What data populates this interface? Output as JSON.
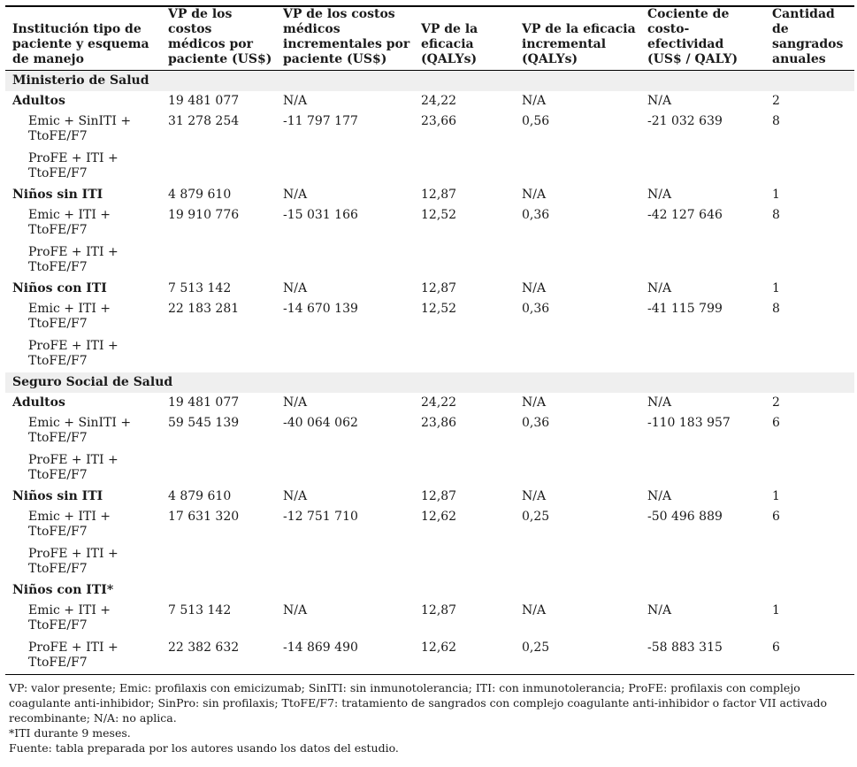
{
  "headers": [
    "Institución tipo de paciente y esquema de manejo",
    "VP de los costos médicos por paciente (US$)",
    "VP de los costos médicos incrementales por paciente (US$)",
    "VP de la eficacia (QALYs)",
    "VP de la eficacia incremental (QALYs)",
    "Cociente de costo- efectividad (US$ / QALY)",
    "Cantidad de sangrados anuales"
  ],
  "sections": [
    {
      "title": "Ministerio de Salud",
      "groups": [
        {
          "label": "Adultos",
          "values": [
            "19 481 077",
            "N/A",
            "24,22",
            "N/A",
            "N/A",
            "2"
          ],
          "rows": [
            {
              "label": "Emic + SinITI + TtoFE/F7",
              "values": [
                "31 278 254",
                "-11 797 177",
                "23,66",
                "0,56",
                "-21 032 639",
                "8"
              ]
            },
            {
              "label": "ProFE + ITI + TtoFE/F7",
              "values": [
                "",
                "",
                "",
                "",
                "",
                ""
              ]
            }
          ]
        },
        {
          "label": "Niños sin ITI",
          "values": [
            "4 879 610",
            "N/A",
            "12,87",
            "N/A",
            "N/A",
            "1"
          ],
          "rows": [
            {
              "label": "Emic + ITI + TtoFE/F7",
              "values": [
                "19 910 776",
                "-15 031 166",
                "12,52",
                "0,36",
                "-42 127 646",
                "8"
              ]
            },
            {
              "label": "ProFE + ITI + TtoFE/F7",
              "values": [
                "",
                "",
                "",
                "",
                "",
                ""
              ]
            }
          ]
        },
        {
          "label": "Niños con ITI",
          "values": [
            "7 513 142",
            "N/A",
            "12,87",
            "N/A",
            "N/A",
            "1"
          ],
          "rows": [
            {
              "label": "Emic + ITI + TtoFE/F7",
              "values": [
                "22 183 281",
                "-14 670 139",
                "12,52",
                "0,36",
                "-41 115 799",
                "8"
              ]
            },
            {
              "label": "ProFE + ITI + TtoFE/F7",
              "values": [
                "",
                "",
                "",
                "",
                "",
                ""
              ]
            }
          ]
        }
      ]
    },
    {
      "title": "Seguro Social de Salud",
      "groups": [
        {
          "label": "Adultos",
          "values": [
            "19 481 077",
            "N/A",
            "24,22",
            "N/A",
            "N/A",
            "2"
          ],
          "rows": [
            {
              "label": "Emic + SinITI + TtoFE/F7",
              "values": [
                "59 545 139",
                "-40 064 062",
                "23,86",
                "0,36",
                "-110 183 957",
                "6"
              ]
            },
            {
              "label": "ProFE + ITI + TtoFE/F7",
              "values": [
                "",
                "",
                "",
                "",
                "",
                ""
              ]
            }
          ]
        },
        {
          "label": "Niños sin ITI",
          "values": [
            "4 879 610",
            "N/A",
            "12,87",
            "N/A",
            "N/A",
            "1"
          ],
          "rows": [
            {
              "label": "Emic + ITI + TtoFE/F7",
              "values": [
                "17 631 320",
                "-12 751 710",
                "12,62",
                "0,25",
                "-50 496 889",
                "6"
              ]
            },
            {
              "label": "ProFE + ITI + TtoFE/F7",
              "values": [
                "",
                "",
                "",
                "",
                "",
                ""
              ]
            }
          ]
        },
        {
          "label": "Niños con ITI*",
          "values": [
            "",
            "",
            "",
            "",
            "",
            ""
          ],
          "rows": [
            {
              "label": "Emic + ITI + TtoFE/F7",
              "values": [
                "7 513 142",
                "N/A",
                "12,87",
                "N/A",
                "N/A",
                "1"
              ]
            },
            {
              "label": "ProFE + ITI + TtoFE/F7",
              "values": [
                "22 382 632",
                "-14 869 490",
                "12,62",
                "0,25",
                "-58 883 315",
                "6"
              ]
            }
          ]
        }
      ]
    }
  ],
  "notes": [
    "VP: valor presente; Emic: profilaxis con emicizumab; SinITI: sin inmunotolerancia; ITI: con inmunotolerancia; ProFE: profilaxis con complejo coagulante anti-inhibidor; SinPro: sin profilaxis; TtoFE/F7: tratamiento de sangrados con complejo coagulante anti-inhibidor o factor VII activado recombinante; N/A: no aplica.",
    "*ITI durante 9 meses.",
    "Fuente: tabla preparada por los autores usando los datos del estudio."
  ]
}
